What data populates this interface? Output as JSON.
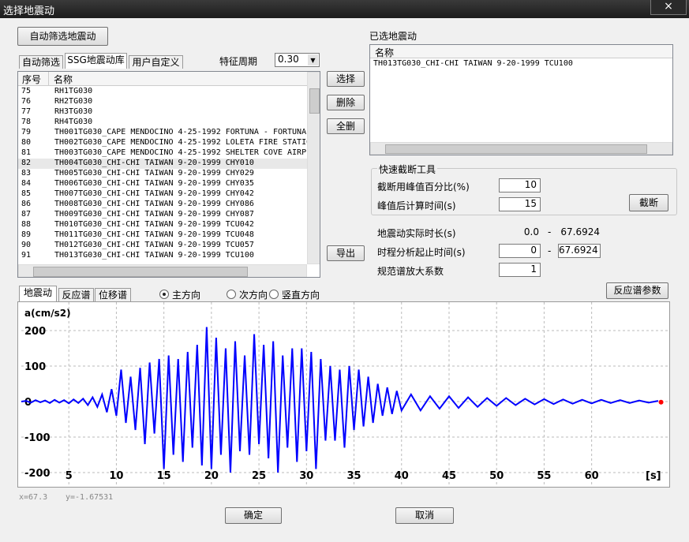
{
  "window": {
    "title": "选择地震动",
    "close": "×"
  },
  "buttons": {
    "auto_filter": "自动筛选地震动",
    "select": "选择",
    "delete": "删除",
    "clear": "全删",
    "export": "导出",
    "cut": "截断",
    "response_params": "反应谱参数",
    "ok": "确定",
    "cancel": "取消"
  },
  "library_tabs": [
    "自动筛选",
    "SSG地震动库",
    "用户自定义"
  ],
  "period": {
    "label": "特征周期",
    "value": "0.30"
  },
  "library_table": {
    "headers": [
      "序号",
      "名称"
    ],
    "rows": [
      [
        "75",
        "RH1TG030"
      ],
      [
        "76",
        "RH2TG030"
      ],
      [
        "77",
        "RH3TG030"
      ],
      [
        "78",
        "RH4TG030"
      ],
      [
        "79",
        "TH001TG030_CAPE MENDOCINO 4-25-1992 FORTUNA - FORTUNA"
      ],
      [
        "80",
        "TH002TG030_CAPE MENDOCINO 4-25-1992 LOLETA FIRE STATIO"
      ],
      [
        "81",
        "TH003TG030_CAPE MENDOCINO 4-25-1992 SHELTER COVE AIRP"
      ],
      [
        "82",
        "TH004TG030_CHI-CHI TAIWAN 9-20-1999 CHY010"
      ],
      [
        "83",
        "TH005TG030_CHI-CHI TAIWAN 9-20-1999 CHY029"
      ],
      [
        "84",
        "TH006TG030_CHI-CHI TAIWAN 9-20-1999 CHY035"
      ],
      [
        "85",
        "TH007TG030_CHI-CHI TAIWAN 9-20-1999 CHY042"
      ],
      [
        "86",
        "TH008TG030_CHI-CHI TAIWAN 9-20-1999 CHY086"
      ],
      [
        "87",
        "TH009TG030_CHI-CHI TAIWAN 9-20-1999 CHY087"
      ],
      [
        "88",
        "TH010TG030_CHI-CHI TAIWAN 9-20-1999 TCU042"
      ],
      [
        "89",
        "TH011TG030_CHI-CHI TAIWAN 9-20-1999 TCU048"
      ],
      [
        "90",
        "TH012TG030_CHI-CHI TAIWAN 9-20-1999 TCU057"
      ],
      [
        "91",
        "TH013TG030_CHI-CHI TAIWAN 9-20-1999 TCU100"
      ]
    ]
  },
  "selected": {
    "title": "已选地震动",
    "header": "名称",
    "rows": [
      "TH013TG030_CHI-CHI TAIWAN 9-20-1999 TCU100"
    ]
  },
  "quick_cut": {
    "title": "快速截断工具",
    "fields": [
      {
        "label": "截断用峰值百分比(%)",
        "value": "10"
      },
      {
        "label": "峰值后计算时间(s)",
        "value": "15"
      }
    ]
  },
  "duration": {
    "label": "地震动实际时长(s)",
    "start": "0.0",
    "dash": "-",
    "end": "67.6924"
  },
  "analysis_range": {
    "label": "时程分析起止时间(s)",
    "start": "0",
    "dash": "-",
    "end": "67.6924"
  },
  "scale": {
    "label": "规范谱放大系数",
    "value": "1"
  },
  "chart_tabs": [
    "地震动",
    "反应谱",
    "位移谱"
  ],
  "directions": {
    "options": [
      "主方向",
      "次方向",
      "竖直方向"
    ],
    "checked": 0
  },
  "status": {
    "x": "x=67.3",
    "y": "y=-1.67531"
  },
  "chart_data": {
    "type": "line",
    "ylabel": "a(cm/s2)",
    "xlabel": "[s]",
    "color": "#0000ff",
    "grid": true,
    "xlim": [
      0,
      68
    ],
    "ylim": [
      -240,
      280
    ],
    "xticks": [
      5,
      10,
      15,
      20,
      25,
      30,
      35,
      40,
      45,
      50,
      55,
      60
    ],
    "yticks": [
      -200,
      -100,
      0,
      100,
      200
    ],
    "x": [
      0,
      0.5,
      1,
      1.5,
      2,
      2.5,
      3,
      3.5,
      4,
      4.5,
      5,
      5.5,
      6,
      6.5,
      7,
      7.5,
      8,
      8.5,
      9,
      9.5,
      10,
      10.5,
      11,
      11.5,
      12,
      12.5,
      13,
      13.5,
      14,
      14.5,
      15,
      15.5,
      16,
      16.5,
      17,
      17.5,
      18,
      18.5,
      19,
      19.5,
      20,
      20.5,
      21,
      21.5,
      22,
      22.5,
      23,
      23.5,
      24,
      24.5,
      25,
      25.5,
      26,
      26.5,
      27,
      27.5,
      28,
      28.5,
      29,
      29.5,
      30,
      30.5,
      31,
      31.5,
      32,
      32.5,
      33,
      33.5,
      34,
      34.5,
      35,
      35.5,
      36,
      36.5,
      37,
      37.5,
      38,
      38.5,
      39,
      39.5,
      40,
      41,
      42,
      43,
      44,
      45,
      46,
      47,
      48,
      49,
      50,
      51,
      52,
      53,
      54,
      55,
      56,
      57,
      58,
      59,
      60,
      61,
      62,
      63,
      64,
      65,
      66,
      67
    ],
    "values": [
      0,
      2,
      -3,
      4,
      -2,
      3,
      -4,
      5,
      -3,
      4,
      -5,
      6,
      -4,
      8,
      -10,
      12,
      -15,
      20,
      -30,
      35,
      -40,
      90,
      -60,
      70,
      -80,
      95,
      -120,
      110,
      -90,
      120,
      -190,
      130,
      -150,
      120,
      -170,
      140,
      -130,
      160,
      -180,
      210,
      -190,
      180,
      -150,
      150,
      -200,
      170,
      -140,
      130,
      -150,
      190,
      -120,
      160,
      -160,
      170,
      -200,
      130,
      -130,
      150,
      -170,
      150,
      -140,
      140,
      -190,
      120,
      -110,
      100,
      -110,
      90,
      -130,
      100,
      -80,
      90,
      -70,
      70,
      -60,
      50,
      -40,
      40,
      -35,
      30,
      -25,
      20,
      -25,
      15,
      -20,
      15,
      -18,
      12,
      -15,
      10,
      -12,
      10,
      -10,
      8,
      -8,
      7,
      -7,
      6,
      -6,
      5,
      -5,
      5,
      -4,
      4,
      -4,
      3,
      -3,
      2
    ],
    "cursor": {
      "x": 67.3,
      "y": -1.67531,
      "color": "#ff0000"
    }
  }
}
